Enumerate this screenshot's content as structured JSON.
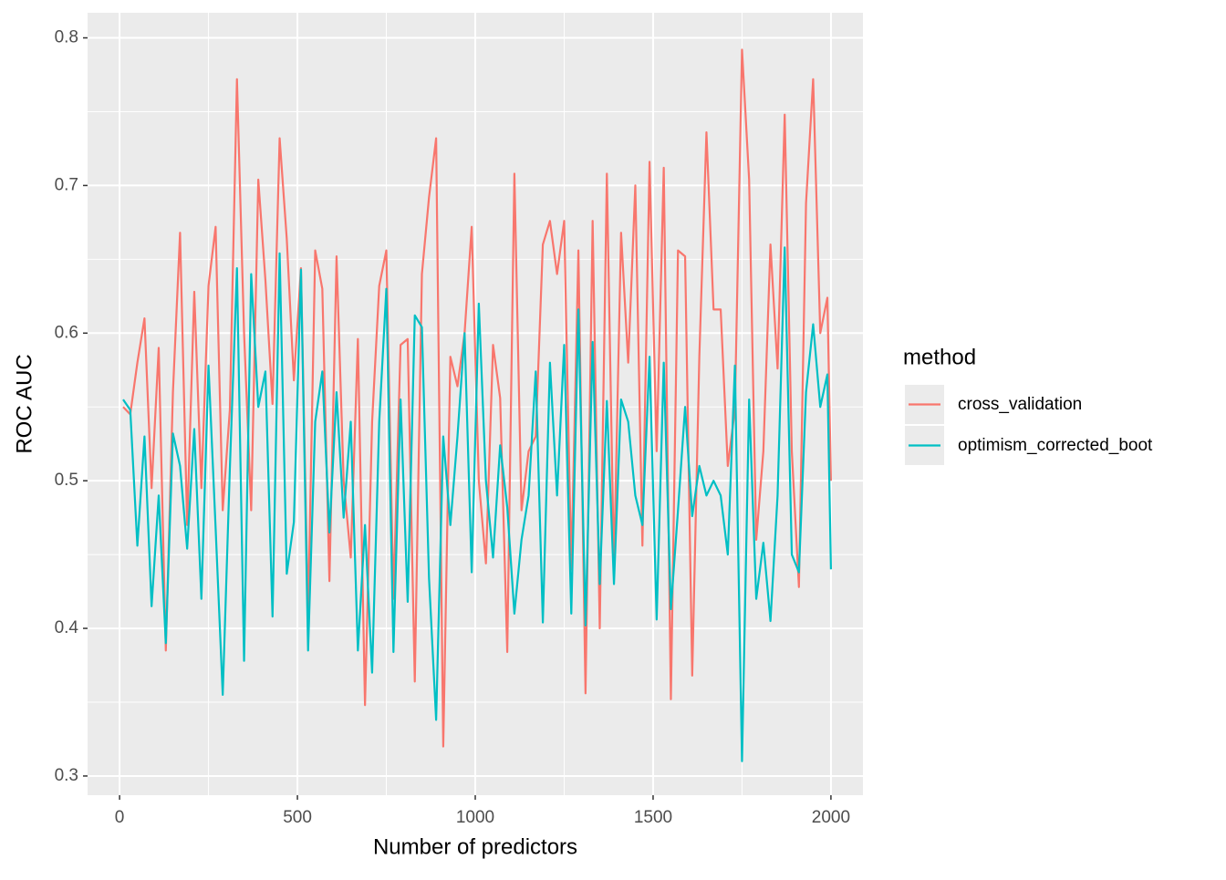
{
  "chart_data": {
    "type": "line",
    "xlabel": "Number of predictors",
    "ylabel": "ROC AUC",
    "legend_title": "method",
    "legend_position": "right",
    "grid": true,
    "x": [
      10,
      30,
      50,
      70,
      90,
      110,
      130,
      150,
      170,
      190,
      210,
      230,
      250,
      270,
      290,
      310,
      330,
      350,
      370,
      390,
      410,
      430,
      450,
      470,
      490,
      510,
      530,
      550,
      570,
      590,
      610,
      630,
      650,
      670,
      690,
      710,
      730,
      750,
      770,
      790,
      810,
      830,
      850,
      870,
      890,
      910,
      930,
      950,
      970,
      990,
      1010,
      1030,
      1050,
      1070,
      1090,
      1110,
      1130,
      1150,
      1170,
      1190,
      1210,
      1230,
      1250,
      1270,
      1290,
      1310,
      1330,
      1350,
      1370,
      1390,
      1410,
      1430,
      1450,
      1470,
      1490,
      1510,
      1530,
      1550,
      1570,
      1590,
      1610,
      1630,
      1650,
      1670,
      1690,
      1710,
      1730,
      1750,
      1770,
      1790,
      1810,
      1830,
      1850,
      1870,
      1890,
      1910,
      1930,
      1950,
      1970,
      1990,
      2000
    ],
    "series": [
      {
        "name": "cross_validation",
        "color": "#f8766d",
        "values": [
          0.55,
          0.545,
          0.58,
          0.61,
          0.495,
          0.59,
          0.385,
          0.56,
          0.668,
          0.47,
          0.628,
          0.495,
          0.632,
          0.672,
          0.48,
          0.548,
          0.772,
          0.6,
          0.48,
          0.704,
          0.636,
          0.552,
          0.732,
          0.664,
          0.568,
          0.644,
          0.408,
          0.656,
          0.63,
          0.432,
          0.652,
          0.5,
          0.448,
          0.596,
          0.348,
          0.54,
          0.632,
          0.656,
          0.42,
          0.592,
          0.596,
          0.364,
          0.64,
          0.692,
          0.732,
          0.32,
          0.584,
          0.564,
          0.6,
          0.672,
          0.5,
          0.444,
          0.592,
          0.556,
          0.384,
          0.708,
          0.48,
          0.52,
          0.53,
          0.66,
          0.676,
          0.64,
          0.676,
          0.44,
          0.656,
          0.356,
          0.676,
          0.4,
          0.708,
          0.44,
          0.668,
          0.58,
          0.7,
          0.456,
          0.716,
          0.52,
          0.712,
          0.352,
          0.656,
          0.652,
          0.368,
          0.584,
          0.736,
          0.616,
          0.616,
          0.51,
          0.548,
          0.792,
          0.704,
          0.46,
          0.52,
          0.66,
          0.576,
          0.748,
          0.52,
          0.428,
          0.688,
          0.772,
          0.6,
          0.624,
          0.5
        ]
      },
      {
        "name": "optimism_corrected_boot",
        "color": "#00bfc4",
        "values": [
          0.555,
          0.548,
          0.456,
          0.53,
          0.415,
          0.49,
          0.39,
          0.532,
          0.51,
          0.454,
          0.535,
          0.42,
          0.578,
          0.468,
          0.355,
          0.508,
          0.644,
          0.378,
          0.64,
          0.55,
          0.574,
          0.408,
          0.654,
          0.437,
          0.472,
          0.643,
          0.385,
          0.54,
          0.574,
          0.465,
          0.56,
          0.475,
          0.54,
          0.385,
          0.47,
          0.37,
          0.54,
          0.63,
          0.384,
          0.555,
          0.418,
          0.612,
          0.604,
          0.434,
          0.338,
          0.53,
          0.47,
          0.53,
          0.6,
          0.438,
          0.62,
          0.5,
          0.448,
          0.524,
          0.482,
          0.41,
          0.46,
          0.49,
          0.574,
          0.404,
          0.58,
          0.49,
          0.592,
          0.41,
          0.616,
          0.402,
          0.594,
          0.43,
          0.554,
          0.43,
          0.555,
          0.54,
          0.49,
          0.47,
          0.584,
          0.406,
          0.58,
          0.413,
          0.48,
          0.55,
          0.476,
          0.51,
          0.49,
          0.5,
          0.49,
          0.45,
          0.578,
          0.31,
          0.555,
          0.42,
          0.458,
          0.405,
          0.49,
          0.658,
          0.45,
          0.438,
          0.56,
          0.606,
          0.55,
          0.572,
          0.44
        ]
      }
    ],
    "xlim": [
      -90,
      2090
    ],
    "ylim": [
      0.287,
      0.817
    ],
    "xticks": [
      0,
      500,
      1000,
      1500,
      2000
    ],
    "yticks": [
      0.3,
      0.4,
      0.5,
      0.6,
      0.7,
      0.8
    ]
  }
}
